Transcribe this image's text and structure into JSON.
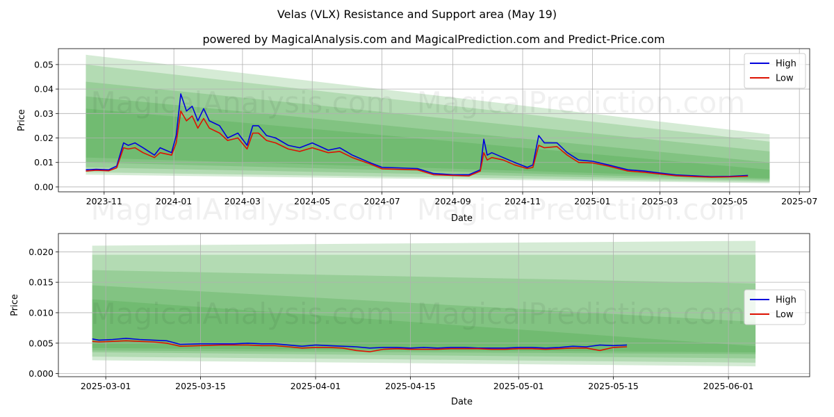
{
  "page": {
    "title": "Velas (VLX) Resistance and Support area (May 19)",
    "subtitle": "powered by MagicalAnalysis.com and MagicalPrediction.com and Predict-Price.com",
    "watermarks": [
      "MagicalAnalysis.com",
      "MagicalPrediction.com"
    ]
  },
  "colors": {
    "high": "#0000dd",
    "low": "#dd1100",
    "band": "#2e9b2e",
    "grid": "#b0b0b0"
  },
  "chart_data": [
    {
      "type": "line",
      "xlabel": "Date",
      "ylabel": "Price",
      "xlim": [
        "2023-09-22",
        "2025-07-10"
      ],
      "ylim": [
        -0.002,
        0.0565
      ],
      "x_ticks": [
        "2023-11-01",
        "2024-01-01",
        "2024-03-01",
        "2024-05-01",
        "2024-07-01",
        "2024-09-01",
        "2024-11-01",
        "2025-01-01",
        "2025-03-01",
        "2025-05-01",
        "2025-07-01"
      ],
      "x_tick_labels": [
        "2023-11",
        "2024-01",
        "2024-03",
        "2024-05",
        "2024-07",
        "2024-09",
        "2024-11",
        "2025-01",
        "2025-03",
        "2025-05",
        "2025-07"
      ],
      "y_ticks": [
        0,
        0.01,
        0.02,
        0.03,
        0.04,
        0.05
      ],
      "y_tick_labels": [
        "0.00",
        "0.01",
        "0.02",
        "0.03",
        "0.04",
        "0.05"
      ],
      "grid": true,
      "legend": "top-right",
      "bands": [
        {
          "x0": "2023-10-16",
          "x1": "2025-06-05",
          "top": [
            0.054,
            0.0215
          ],
          "bottom": [
            0.005,
            0.0015
          ]
        },
        {
          "x0": "2023-10-16",
          "x1": "2025-06-05",
          "top": [
            0.05,
            0.0185
          ],
          "bottom": [
            0.006,
            0.002
          ]
        },
        {
          "x0": "2023-10-16",
          "x1": "2025-06-05",
          "top": [
            0.043,
            0.0145
          ],
          "bottom": [
            0.008,
            0.0025
          ]
        },
        {
          "x0": "2023-10-16",
          "x1": "2025-06-05",
          "top": [
            0.037,
            0.01
          ],
          "bottom": [
            0.01,
            0.003
          ]
        },
        {
          "x0": "2023-10-16",
          "x1": "2025-06-05",
          "top": [
            0.032,
            0.007
          ],
          "bottom": [
            0.012,
            0.0035
          ]
        }
      ],
      "series": [
        {
          "name": "High",
          "x": [
            "2023-10-16",
            "2023-10-25",
            "2023-11-05",
            "2023-11-12",
            "2023-11-18",
            "2023-11-22",
            "2023-11-28",
            "2023-12-05",
            "2023-12-15",
            "2023-12-20",
            "2023-12-30",
            "2024-01-03",
            "2024-01-07",
            "2024-01-12",
            "2024-01-17",
            "2024-01-22",
            "2024-01-27",
            "2024-02-01",
            "2024-02-10",
            "2024-02-17",
            "2024-02-26",
            "2024-03-05",
            "2024-03-10",
            "2024-03-15",
            "2024-03-22",
            "2024-03-30",
            "2024-04-10",
            "2024-04-20",
            "2024-05-01",
            "2024-05-15",
            "2024-05-25",
            "2024-06-05",
            "2024-06-20",
            "2024-07-01",
            "2024-07-15",
            "2024-08-01",
            "2024-08-15",
            "2024-09-01",
            "2024-09-15",
            "2024-09-25",
            "2024-09-28",
            "2024-10-01",
            "2024-10-05",
            "2024-10-15",
            "2024-10-25",
            "2024-11-05",
            "2024-11-10",
            "2024-11-15",
            "2024-11-20",
            "2024-12-01",
            "2024-12-10",
            "2024-12-20",
            "2025-01-01",
            "2025-01-15",
            "2025-02-01",
            "2025-02-15",
            "2025-03-01",
            "2025-03-15",
            "2025-04-01",
            "2025-04-15",
            "2025-05-01",
            "2025-05-17"
          ],
          "values": [
            0.007,
            0.0072,
            0.007,
            0.0085,
            0.018,
            0.017,
            0.018,
            0.016,
            0.013,
            0.016,
            0.014,
            0.021,
            0.038,
            0.031,
            0.033,
            0.027,
            0.032,
            0.027,
            0.025,
            0.02,
            0.022,
            0.017,
            0.025,
            0.025,
            0.021,
            0.02,
            0.017,
            0.016,
            0.018,
            0.015,
            0.016,
            0.013,
            0.01,
            0.008,
            0.0078,
            0.0075,
            0.0055,
            0.005,
            0.005,
            0.007,
            0.0195,
            0.013,
            0.014,
            0.012,
            0.01,
            0.008,
            0.009,
            0.021,
            0.018,
            0.018,
            0.014,
            0.011,
            0.0105,
            0.009,
            0.007,
            0.0065,
            0.0057,
            0.0049,
            0.0045,
            0.0042,
            0.0043,
            0.0047
          ]
        },
        {
          "name": "Low",
          "x": [
            "2023-10-16",
            "2023-10-25",
            "2023-11-05",
            "2023-11-12",
            "2023-11-18",
            "2023-11-22",
            "2023-11-28",
            "2023-12-05",
            "2023-12-15",
            "2023-12-20",
            "2023-12-30",
            "2024-01-03",
            "2024-01-07",
            "2024-01-12",
            "2024-01-17",
            "2024-01-22",
            "2024-01-27",
            "2024-02-01",
            "2024-02-10",
            "2024-02-17",
            "2024-02-26",
            "2024-03-05",
            "2024-03-10",
            "2024-03-15",
            "2024-03-22",
            "2024-03-30",
            "2024-04-10",
            "2024-04-20",
            "2024-05-01",
            "2024-05-15",
            "2024-05-25",
            "2024-06-05",
            "2024-06-20",
            "2024-07-01",
            "2024-07-15",
            "2024-08-01",
            "2024-08-15",
            "2024-09-01",
            "2024-09-15",
            "2024-09-25",
            "2024-09-28",
            "2024-10-01",
            "2024-10-05",
            "2024-10-15",
            "2024-10-25",
            "2024-11-05",
            "2024-11-10",
            "2024-11-15",
            "2024-11-20",
            "2024-12-01",
            "2024-12-10",
            "2024-12-20",
            "2025-01-01",
            "2025-01-15",
            "2025-02-01",
            "2025-02-15",
            "2025-03-01",
            "2025-03-15",
            "2025-04-01",
            "2025-04-15",
            "2025-05-01",
            "2025-05-17"
          ],
          "values": [
            0.0065,
            0.0068,
            0.0066,
            0.0078,
            0.016,
            0.0155,
            0.016,
            0.014,
            0.012,
            0.014,
            0.013,
            0.018,
            0.031,
            0.027,
            0.029,
            0.024,
            0.028,
            0.024,
            0.022,
            0.019,
            0.02,
            0.0155,
            0.022,
            0.022,
            0.019,
            0.018,
            0.0155,
            0.0145,
            0.016,
            0.014,
            0.0145,
            0.012,
            0.0095,
            0.0074,
            0.0072,
            0.007,
            0.005,
            0.0047,
            0.0045,
            0.0065,
            0.014,
            0.011,
            0.012,
            0.011,
            0.009,
            0.0075,
            0.008,
            0.017,
            0.016,
            0.0165,
            0.013,
            0.01,
            0.0098,
            0.0085,
            0.0065,
            0.006,
            0.0053,
            0.0046,
            0.0042,
            0.004,
            0.0041,
            0.0044
          ]
        }
      ]
    },
    {
      "type": "line",
      "xlabel": "Date",
      "ylabel": "Price",
      "xlim": [
        "2025-02-22",
        "2025-06-13"
      ],
      "ylim": [
        -0.0005,
        0.023
      ],
      "x_ticks": [
        "2025-03-01",
        "2025-03-15",
        "2025-04-01",
        "2025-04-15",
        "2025-05-01",
        "2025-05-15",
        "2025-06-01"
      ],
      "x_tick_labels": [
        "2025-03-01",
        "2025-03-15",
        "2025-04-01",
        "2025-04-15",
        "2025-05-01",
        "2025-05-15",
        "2025-06-01"
      ],
      "y_ticks": [
        0,
        0.005,
        0.01,
        0.015,
        0.02
      ],
      "y_tick_labels": [
        "0.000",
        "0.005",
        "0.010",
        "0.015",
        "0.020"
      ],
      "grid": true,
      "legend": "center-right",
      "bands": [
        {
          "x0": "2025-02-27",
          "x1": "2025-06-05",
          "top": [
            0.021,
            0.0218
          ],
          "bottom": [
            0.0022,
            0.0012
          ]
        },
        {
          "x0": "2025-02-27",
          "x1": "2025-06-05",
          "top": [
            0.0195,
            0.0195
          ],
          "bottom": [
            0.0028,
            0.0018
          ]
        },
        {
          "x0": "2025-02-27",
          "x1": "2025-06-05",
          "top": [
            0.017,
            0.0148
          ],
          "bottom": [
            0.0035,
            0.0025
          ]
        },
        {
          "x0": "2025-02-27",
          "x1": "2025-06-05",
          "top": [
            0.0145,
            0.0085
          ],
          "bottom": [
            0.0038,
            0.0032
          ]
        },
        {
          "x0": "2025-02-27",
          "x1": "2025-06-05",
          "top": [
            0.0122,
            0.0045
          ],
          "bottom": [
            0.0042,
            0.0035
          ]
        }
      ],
      "series": [
        {
          "name": "High",
          "x": [
            "2025-02-27",
            "2025-02-28",
            "2025-03-02",
            "2025-03-04",
            "2025-03-06",
            "2025-03-08",
            "2025-03-10",
            "2025-03-12",
            "2025-03-15",
            "2025-03-18",
            "2025-03-20",
            "2025-03-22",
            "2025-03-24",
            "2025-03-26",
            "2025-03-28",
            "2025-03-30",
            "2025-04-01",
            "2025-04-03",
            "2025-04-05",
            "2025-04-07",
            "2025-04-09",
            "2025-04-11",
            "2025-04-13",
            "2025-04-15",
            "2025-04-17",
            "2025-04-19",
            "2025-04-21",
            "2025-04-23",
            "2025-04-25",
            "2025-04-27",
            "2025-04-29",
            "2025-05-01",
            "2025-05-03",
            "2025-05-05",
            "2025-05-07",
            "2025-05-09",
            "2025-05-11",
            "2025-05-13",
            "2025-05-15",
            "2025-05-17"
          ],
          "values": [
            0.0057,
            0.0055,
            0.0056,
            0.0058,
            0.0056,
            0.0055,
            0.0054,
            0.0048,
            0.0049,
            0.0049,
            0.0049,
            0.005,
            0.0049,
            0.0049,
            0.0047,
            0.0045,
            0.0047,
            0.0046,
            0.0045,
            0.0044,
            0.0042,
            0.0043,
            0.0043,
            0.0042,
            0.0043,
            0.0042,
            0.0043,
            0.0043,
            0.0042,
            0.0042,
            0.0042,
            0.0043,
            0.0043,
            0.0042,
            0.0043,
            0.0045,
            0.0044,
            0.0047,
            0.0046,
            0.0047
          ]
        },
        {
          "name": "Low",
          "x": [
            "2025-02-27",
            "2025-02-28",
            "2025-03-02",
            "2025-03-04",
            "2025-03-06",
            "2025-03-08",
            "2025-03-10",
            "2025-03-12",
            "2025-03-15",
            "2025-03-18",
            "2025-03-20",
            "2025-03-22",
            "2025-03-24",
            "2025-03-26",
            "2025-03-28",
            "2025-03-30",
            "2025-04-01",
            "2025-04-03",
            "2025-04-05",
            "2025-04-07",
            "2025-04-09",
            "2025-04-11",
            "2025-04-13",
            "2025-04-15",
            "2025-04-17",
            "2025-04-19",
            "2025-04-21",
            "2025-04-23",
            "2025-04-25",
            "2025-04-27",
            "2025-04-29",
            "2025-05-01",
            "2025-05-03",
            "2025-05-05",
            "2025-05-07",
            "2025-05-09",
            "2025-05-11",
            "2025-05-13",
            "2025-05-15",
            "2025-05-17"
          ],
          "values": [
            0.0053,
            0.0052,
            0.0053,
            0.0054,
            0.0053,
            0.0052,
            0.005,
            0.0045,
            0.0046,
            0.0047,
            0.0047,
            0.0047,
            0.0046,
            0.0046,
            0.0044,
            0.0042,
            0.0043,
            0.0043,
            0.0042,
            0.0038,
            0.0036,
            0.004,
            0.0041,
            0.004,
            0.004,
            0.004,
            0.0041,
            0.0041,
            0.0041,
            0.004,
            0.004,
            0.0041,
            0.0041,
            0.004,
            0.0041,
            0.0042,
            0.0042,
            0.0038,
            0.0043,
            0.0044
          ]
        }
      ]
    }
  ]
}
